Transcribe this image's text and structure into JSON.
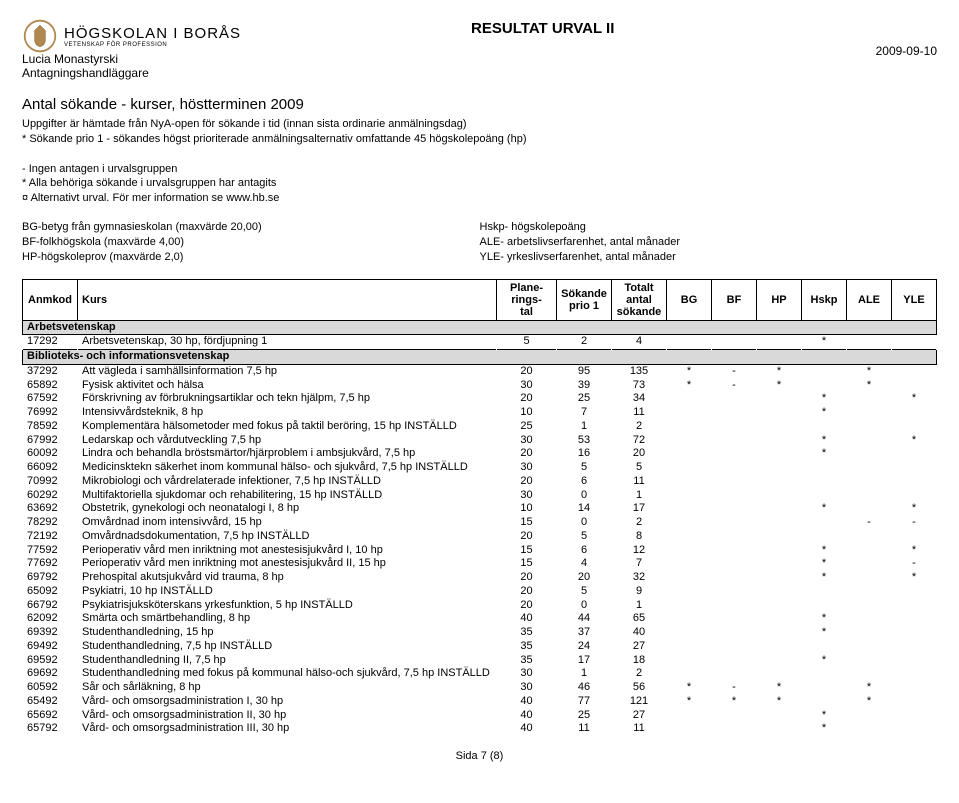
{
  "header": {
    "institution": "HÖGSKOLAN I BORÅS",
    "institution_sub": "VETENSKAP FÖR PROFESSION",
    "title": "RESULTAT URVAL II",
    "date": "2009-09-10",
    "person_name": "Lucia Monastyrski",
    "person_role": "Antagningshandläggare"
  },
  "section": {
    "title": "Antal sökande - kurser, höstterminen 2009",
    "lines": [
      "Uppgifter är hämtade från NyA-open för sökande i tid (innan sista ordinarie anmälningsdag)",
      "* Sökande prio 1 - sökandes högst prioriterade anmälningsalternativ omfattande 45 högskolepoäng (hp)",
      "",
      "- Ingen antagen i urvalsgruppen",
      "* Alla behöriga sökande i urvalsgruppen har antagits",
      "¤ Alternativt urval. För mer information se www.hb.se"
    ]
  },
  "legend": {
    "left": [
      "BG-betyg från gymnasieskolan (maxvärde 20,00)",
      "BF-folkhögskola (maxvärde 4,00)",
      "HP-högskoleprov (maxvärde 2,0)"
    ],
    "right": [
      "Hskp- högskolepoäng",
      "ALE- arbetslivserfarenhet, antal månader",
      "YLE- yrkeslivserfarenhet, antal månader"
    ]
  },
  "columns": [
    "Anmkod",
    "Kurs",
    "Plane-rings-\ntal",
    "Sökande\nprio 1",
    "Totalt\nantal\nsökande",
    "BG",
    "BF",
    "HP",
    "Hskp",
    "ALE",
    "YLE"
  ],
  "rows": [
    {
      "type": "group",
      "label": "Arbetsvetenskap"
    },
    {
      "c": [
        "17292",
        "Arbetsvetenskap, 30 hp, fördjupning 1",
        "5",
        "2",
        "4",
        "",
        "",
        "",
        "*",
        "",
        ""
      ]
    },
    {
      "type": "group",
      "label": "Biblioteks- och informationsvetenskap"
    },
    {
      "c": [
        "37292",
        "Att vägleda i samhällsinformation 7,5 hp",
        "20",
        "95",
        "135",
        "*",
        "-",
        "*",
        "",
        "*",
        ""
      ]
    },
    {
      "c": [
        "65892",
        "Fysisk aktivitet och hälsa",
        "30",
        "39",
        "73",
        "*",
        "-",
        "*",
        "",
        "*",
        ""
      ]
    },
    {
      "c": [
        "67592",
        "Förskrivning av förbrukningsartiklar och tekn hjälpm, 7,5 hp",
        "20",
        "25",
        "34",
        "",
        "",
        "",
        "*",
        "",
        "*"
      ]
    },
    {
      "c": [
        "76992",
        "Intensivvårdsteknik, 8 hp",
        "10",
        "7",
        "11",
        "",
        "",
        "",
        "*",
        "",
        ""
      ]
    },
    {
      "c": [
        "78592",
        "Komplementära hälsometoder med fokus på taktil beröring, 15 hp INSTÄLLD",
        "25",
        "1",
        "2",
        "",
        "",
        "",
        "",
        "",
        ""
      ]
    },
    {
      "c": [
        "67992",
        "Ledarskap och vårdutveckling 7,5 hp",
        "30",
        "53",
        "72",
        "",
        "",
        "",
        "*",
        "",
        "*"
      ]
    },
    {
      "c": [
        "60092",
        "Lindra och behandla bröstsmärtor/hjärproblem i ambsjukvård, 7,5 hp",
        "20",
        "16",
        "20",
        "",
        "",
        "",
        "*",
        "",
        ""
      ]
    },
    {
      "c": [
        "66092",
        "Medicinsktekn säkerhet inom kommunal hälso- och sjukvård, 7,5 hp INSTÄLLD",
        "30",
        "5",
        "5",
        "",
        "",
        "",
        "",
        "",
        ""
      ]
    },
    {
      "c": [
        "70992",
        "Mikrobiologi och vårdrelaterade infektioner, 7,5 hp INSTÄLLD",
        "20",
        "6",
        "11",
        "",
        "",
        "",
        "",
        "",
        ""
      ]
    },
    {
      "c": [
        "60292",
        "Multifaktoriella sjukdomar och rehabilitering, 15 hp INSTÄLLD",
        "30",
        "0",
        "1",
        "",
        "",
        "",
        "",
        "",
        ""
      ]
    },
    {
      "c": [
        "63692",
        "Obstetrik, gynekologi och neonatalogi I, 8 hp",
        "10",
        "14",
        "17",
        "",
        "",
        "",
        "*",
        "",
        "*"
      ]
    },
    {
      "c": [
        "78292",
        "Omvårdnad inom intensivvård, 15 hp",
        "15",
        "0",
        "2",
        "",
        "",
        "",
        "",
        "-",
        "-"
      ]
    },
    {
      "c": [
        "72192",
        "Omvårdnadsdokumentation, 7,5 hp INSTÄLLD",
        "20",
        "5",
        "8",
        "",
        "",
        "",
        "",
        "",
        ""
      ]
    },
    {
      "c": [
        "77592",
        "Perioperativ vård men inriktning mot anestesisjukvård I, 10 hp",
        "15",
        "6",
        "12",
        "",
        "",
        "",
        "*",
        "",
        "*"
      ]
    },
    {
      "c": [
        "77692",
        "Perioperativ vård men inriktning mot anestesisjukvård II, 15 hp",
        "15",
        "4",
        "7",
        "",
        "",
        "",
        "*",
        "",
        "-"
      ]
    },
    {
      "c": [
        "69792",
        "Prehospital akutsjukvård vid trauma, 8 hp",
        "20",
        "20",
        "32",
        "",
        "",
        "",
        "*",
        "",
        "*"
      ]
    },
    {
      "c": [
        "65092",
        "Psykiatri, 10 hp INSTÄLLD",
        "20",
        "5",
        "9",
        "",
        "",
        "",
        "",
        "",
        ""
      ]
    },
    {
      "c": [
        "66792",
        "Psykiatrisjuksköterskans yrkesfunktion, 5 hp INSTÄLLD",
        "20",
        "0",
        "1",
        "",
        "",
        "",
        "",
        "",
        ""
      ]
    },
    {
      "c": [
        "62092",
        "Smärta och smärtbehandling, 8 hp",
        "40",
        "44",
        "65",
        "",
        "",
        "",
        "*",
        "",
        ""
      ]
    },
    {
      "c": [
        "69392",
        "Studenthandledning, 15 hp",
        "35",
        "37",
        "40",
        "",
        "",
        "",
        "*",
        "",
        ""
      ]
    },
    {
      "c": [
        "69492",
        "Studenthandledning, 7,5 hp INSTÄLLD",
        "35",
        "24",
        "27",
        "",
        "",
        "",
        "",
        "",
        ""
      ]
    },
    {
      "c": [
        "69592",
        "Studenthandledning II, 7,5 hp",
        "35",
        "17",
        "18",
        "",
        "",
        "",
        "*",
        "",
        ""
      ]
    },
    {
      "c": [
        "69692",
        "Studenthandledning med fokus på kommunal hälso-och sjukvård, 7,5 hp INSTÄLLD",
        "30",
        "1",
        "2",
        "",
        "",
        "",
        "",
        "",
        ""
      ]
    },
    {
      "c": [
        "60592",
        "Sår och sårläkning, 8 hp",
        "30",
        "46",
        "56",
        "*",
        "-",
        "*",
        "",
        "*",
        ""
      ]
    },
    {
      "c": [
        "65492",
        "Vård- och omsorgsadministration I, 30 hp",
        "40",
        "77",
        "121",
        "*",
        "*",
        "*",
        "",
        "*",
        ""
      ]
    },
    {
      "c": [
        "65692",
        "Vård- och omsorgsadministration II, 30 hp",
        "40",
        "25",
        "27",
        "",
        "",
        "",
        "*",
        "",
        ""
      ]
    },
    {
      "c": [
        "65792",
        "Vård- och omsorgsadministration III, 30 hp",
        "40",
        "11",
        "11",
        "",
        "",
        "",
        "*",
        "",
        ""
      ]
    }
  ],
  "footer": "Sida 7 (8)"
}
